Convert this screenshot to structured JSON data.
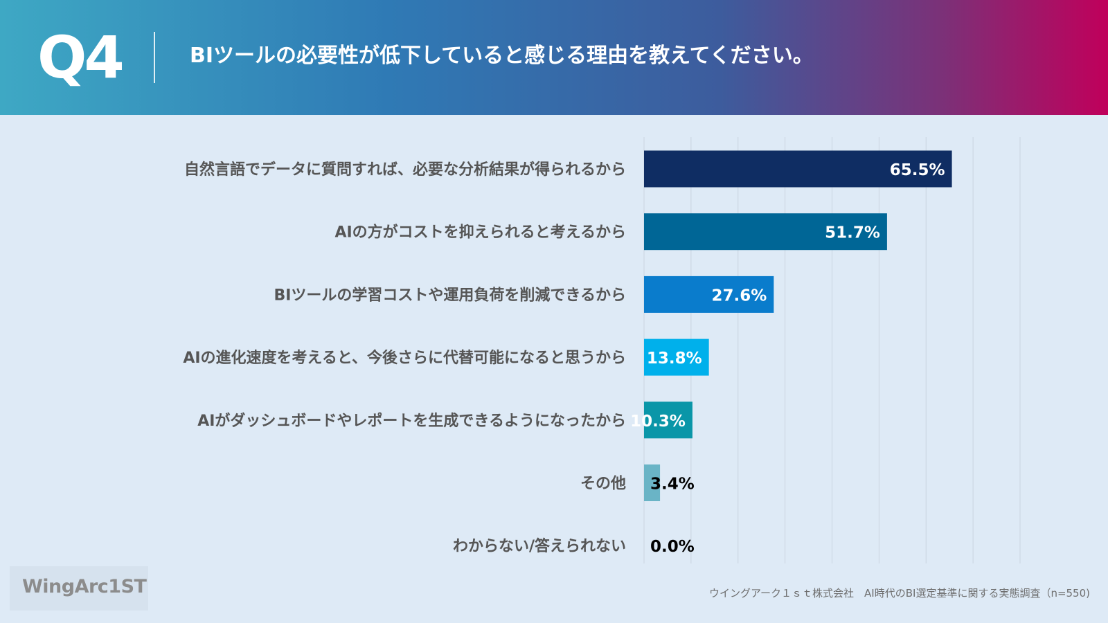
{
  "header": {
    "question_number": "Q4",
    "title": "BIツールの必要性が低下していると感じる理由を教えてください。"
  },
  "chart_data": {
    "type": "bar",
    "orientation": "horizontal",
    "categories": [
      "自然言語でデータに質問すれば、必要な分析結果が得られるから",
      "AIの方がコストを抑えられると考えるから",
      "BIツールの学習コストや運用負荷を削減できるから",
      "AIの進化速度を考えると、今後さらに代替可能になると思うから",
      "AIがダッシュボードやレポートを生成できるようになったから",
      "その他",
      "わからない/答えられない"
    ],
    "values": [
      65.5,
      51.7,
      27.6,
      13.8,
      10.3,
      3.4,
      0.0
    ],
    "value_labels": [
      "65.5%",
      "51.7%",
      "27.6%",
      "13.8%",
      "10.3%",
      "3.4%",
      "0.0%"
    ],
    "bar_colors": [
      "#0f2d63",
      "#006696",
      "#0a7ccc",
      "#00b0eb",
      "#0a96a8",
      "#6ab4c6",
      "#6ab4c6"
    ],
    "label_colors": [
      "#ffffff",
      "#ffffff",
      "#ffffff",
      "#ffffff",
      "#ffffff",
      "#000000",
      "#000000"
    ],
    "xlim": [
      0,
      80
    ],
    "grid": true,
    "title": "",
    "xlabel": "",
    "ylabel": ""
  },
  "footer": {
    "logo_text": "WingArc1ST",
    "source": "ウイングアーク１ｓｔ株式会社　AI時代のBI選定基準に関する実態調査（n=550)"
  }
}
